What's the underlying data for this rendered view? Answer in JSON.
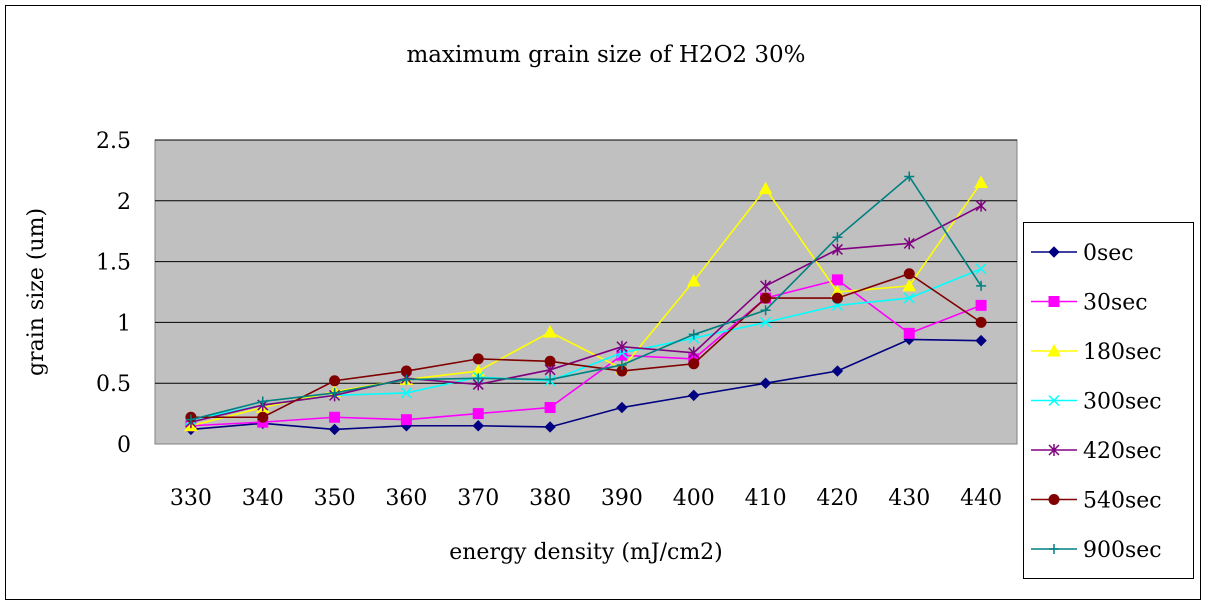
{
  "chart_data": {
    "type": "line",
    "title": "maximum grain size of H2O2 30%",
    "xlabel": "energy density (mJ/cm2)",
    "ylabel": "grain size (um)",
    "categories": [
      "330",
      "340",
      "350",
      "360",
      "370",
      "380",
      "390",
      "400",
      "410",
      "420",
      "430",
      "440"
    ],
    "ylim": [
      0,
      2.5
    ],
    "yticks": [
      "0",
      "0.5",
      "1",
      "1.5",
      "2",
      "2.5"
    ],
    "grid": true,
    "plot_background": "#c0c0c0",
    "legend_position": "right",
    "series": [
      {
        "name": "0sec",
        "color": "#000080",
        "marker": "diamond",
        "values": [
          0.12,
          0.17,
          0.12,
          0.15,
          0.15,
          0.14,
          0.3,
          0.4,
          0.5,
          0.6,
          0.86,
          0.85
        ]
      },
      {
        "name": "30sec",
        "color": "#ff00ff",
        "marker": "square",
        "values": [
          0.15,
          0.18,
          0.22,
          0.2,
          0.25,
          0.3,
          0.73,
          0.7,
          1.2,
          1.35,
          0.91,
          1.14
        ]
      },
      {
        "name": "180sec",
        "color": "#ffff00",
        "marker": "triangle",
        "values": [
          0.15,
          0.3,
          0.43,
          0.53,
          0.6,
          0.92,
          0.62,
          1.34,
          2.1,
          1.25,
          1.3,
          2.15
        ]
      },
      {
        "name": "300sec",
        "color": "#00ffff",
        "marker": "x",
        "values": [
          0.2,
          0.32,
          0.4,
          0.42,
          0.55,
          0.52,
          0.75,
          0.87,
          1.0,
          1.14,
          1.2,
          1.44
        ]
      },
      {
        "name": "420sec",
        "color": "#800080",
        "marker": "star",
        "values": [
          0.18,
          0.32,
          0.4,
          0.54,
          0.49,
          0.61,
          0.8,
          0.75,
          1.3,
          1.6,
          1.65,
          1.96
        ]
      },
      {
        "name": "540sec",
        "color": "#800000",
        "marker": "circle",
        "values": [
          0.22,
          0.22,
          0.52,
          0.6,
          0.7,
          0.68,
          0.6,
          0.66,
          1.2,
          1.2,
          1.4,
          1.0
        ]
      },
      {
        "name": "900sec",
        "color": "#008080",
        "marker": "plus",
        "values": [
          0.2,
          0.35,
          0.42,
          0.53,
          0.54,
          0.53,
          0.65,
          0.9,
          1.1,
          1.7,
          2.2,
          1.3
        ]
      }
    ]
  }
}
